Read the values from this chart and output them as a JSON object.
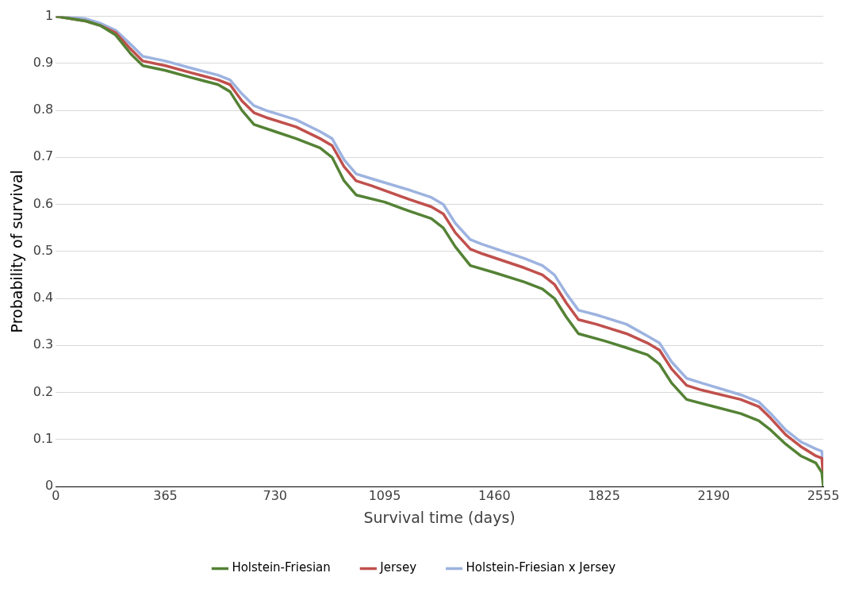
{
  "chart_data": {
    "type": "line",
    "xlabel": "Survival time (days)",
    "ylabel": "Probability of survival",
    "xlim": [
      0,
      2555
    ],
    "xticks": [
      0,
      365,
      730,
      1095,
      1460,
      1825,
      2190,
      2555
    ],
    "ylim": [
      0,
      1
    ],
    "yticks": [
      0,
      0.1,
      0.2,
      0.3,
      0.4,
      0.5,
      0.6,
      0.7,
      0.8,
      0.9,
      1
    ],
    "grid": "y",
    "legend": "bottom",
    "marker": "none",
    "line_style": "solid",
    "series": [
      {
        "name": "Holstein-Friesian",
        "color": "#548235",
        "x": [
          0,
          100,
          150,
          200,
          250,
          290,
          365,
          450,
          540,
          580,
          620,
          660,
          730,
          800,
          880,
          920,
          960,
          1000,
          1095,
          1180,
          1250,
          1290,
          1330,
          1380,
          1460,
          1560,
          1620,
          1660,
          1700,
          1740,
          1825,
          1900,
          1970,
          2010,
          2050,
          2100,
          2190,
          2280,
          2340,
          2380,
          2430,
          2480,
          2530,
          2550,
          2555
        ],
        "values": [
          1,
          0.99,
          0.98,
          0.96,
          0.92,
          0.895,
          0.885,
          0.87,
          0.855,
          0.84,
          0.8,
          0.77,
          0.755,
          0.74,
          0.72,
          0.7,
          0.65,
          0.62,
          0.605,
          0.585,
          0.57,
          0.55,
          0.51,
          0.47,
          0.455,
          0.435,
          0.42,
          0.4,
          0.36,
          0.325,
          0.31,
          0.295,
          0.28,
          0.26,
          0.22,
          0.185,
          0.17,
          0.155,
          0.14,
          0.12,
          0.09,
          0.065,
          0.05,
          0.03,
          0
        ]
      },
      {
        "name": "Jersey",
        "color": "#c0504d",
        "x": [
          0,
          100,
          150,
          200,
          250,
          290,
          365,
          450,
          540,
          580,
          620,
          660,
          700,
          800,
          880,
          920,
          960,
          1000,
          1050,
          1180,
          1250,
          1290,
          1330,
          1380,
          1420,
          1560,
          1620,
          1660,
          1700,
          1740,
          1800,
          1900,
          1970,
          2010,
          2050,
          2100,
          2150,
          2280,
          2340,
          2380,
          2430,
          2480,
          2530,
          2550,
          2555
        ],
        "values": [
          1,
          0.99,
          0.98,
          0.965,
          0.93,
          0.905,
          0.895,
          0.88,
          0.865,
          0.855,
          0.82,
          0.795,
          0.785,
          0.765,
          0.74,
          0.725,
          0.68,
          0.65,
          0.64,
          0.61,
          0.595,
          0.58,
          0.54,
          0.505,
          0.495,
          0.465,
          0.45,
          0.43,
          0.39,
          0.355,
          0.345,
          0.325,
          0.305,
          0.29,
          0.25,
          0.215,
          0.205,
          0.185,
          0.17,
          0.145,
          0.11,
          0.085,
          0.065,
          0.06,
          0.02
        ]
      },
      {
        "name": "Holstein-Friesian x Jersey",
        "color": "#9db3e0",
        "x": [
          0,
          100,
          150,
          200,
          250,
          290,
          365,
          450,
          540,
          580,
          620,
          660,
          700,
          800,
          880,
          920,
          960,
          1000,
          1050,
          1180,
          1250,
          1290,
          1330,
          1380,
          1420,
          1560,
          1620,
          1660,
          1700,
          1740,
          1800,
          1900,
          1970,
          2010,
          2050,
          2100,
          2150,
          2280,
          2340,
          2380,
          2430,
          2480,
          2530,
          2550,
          2555
        ],
        "values": [
          1,
          0.995,
          0.985,
          0.97,
          0.94,
          0.915,
          0.905,
          0.89,
          0.875,
          0.865,
          0.835,
          0.81,
          0.8,
          0.78,
          0.755,
          0.74,
          0.695,
          0.665,
          0.655,
          0.63,
          0.615,
          0.6,
          0.56,
          0.525,
          0.515,
          0.485,
          0.47,
          0.45,
          0.41,
          0.375,
          0.365,
          0.345,
          0.32,
          0.305,
          0.265,
          0.23,
          0.22,
          0.195,
          0.18,
          0.155,
          0.12,
          0.095,
          0.08,
          0.075,
          0.03
        ]
      }
    ]
  }
}
